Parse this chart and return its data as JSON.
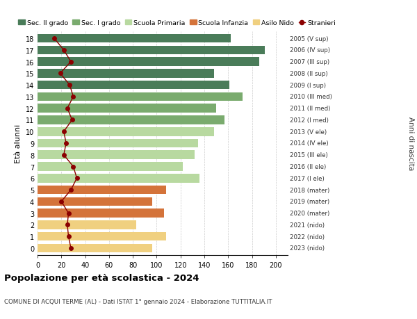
{
  "ages": [
    18,
    17,
    16,
    15,
    14,
    13,
    12,
    11,
    10,
    9,
    8,
    7,
    6,
    5,
    4,
    3,
    2,
    1,
    0
  ],
  "bar_values": [
    162,
    191,
    186,
    148,
    161,
    172,
    150,
    157,
    148,
    135,
    132,
    122,
    136,
    108,
    96,
    106,
    83,
    108,
    96
  ],
  "stranieri": [
    14,
    22,
    28,
    19,
    27,
    30,
    25,
    29,
    22,
    24,
    22,
    30,
    33,
    28,
    20,
    26,
    25,
    26,
    28
  ],
  "right_labels": [
    "2005 (V sup)",
    "2006 (IV sup)",
    "2007 (III sup)",
    "2008 (II sup)",
    "2009 (I sup)",
    "2010 (III med)",
    "2011 (II med)",
    "2012 (I med)",
    "2013 (V ele)",
    "2014 (IV ele)",
    "2015 (III ele)",
    "2016 (II ele)",
    "2017 (I ele)",
    "2018 (mater)",
    "2019 (mater)",
    "2020 (mater)",
    "2021 (nido)",
    "2022 (nido)",
    "2023 (nido)"
  ],
  "bar_colors": [
    "#4a7c59",
    "#4a7c59",
    "#4a7c59",
    "#4a7c59",
    "#4a7c59",
    "#7aab6e",
    "#7aab6e",
    "#7aab6e",
    "#b8d9a0",
    "#b8d9a0",
    "#b8d9a0",
    "#b8d9a0",
    "#b8d9a0",
    "#d4733a",
    "#d4733a",
    "#d4733a",
    "#f0d080",
    "#f0d080",
    "#f0d080"
  ],
  "legend_labels": [
    "Sec. II grado",
    "Sec. I grado",
    "Scuola Primaria",
    "Scuola Infanzia",
    "Asilo Nido",
    "Stranieri"
  ],
  "legend_colors": [
    "#4a7c59",
    "#7aab6e",
    "#b8d9a0",
    "#d4733a",
    "#f0d080",
    "#8b0000"
  ],
  "xlabel_vals": [
    0,
    20,
    40,
    60,
    80,
    100,
    120,
    140,
    160,
    180,
    200
  ],
  "title": "Popolazione per età scolastica - 2024",
  "subtitle": "COMUNE DI ACQUI TERME (AL) - Dati ISTAT 1° gennaio 2024 - Elaborazione TUTTITALIA.IT",
  "ylabel": "Età alunni",
  "right_ylabel": "Anni di nascita",
  "stranieri_color": "#8b0000",
  "bar_height": 0.75,
  "bg_color": "#ffffff",
  "grid_color": "#cccccc"
}
